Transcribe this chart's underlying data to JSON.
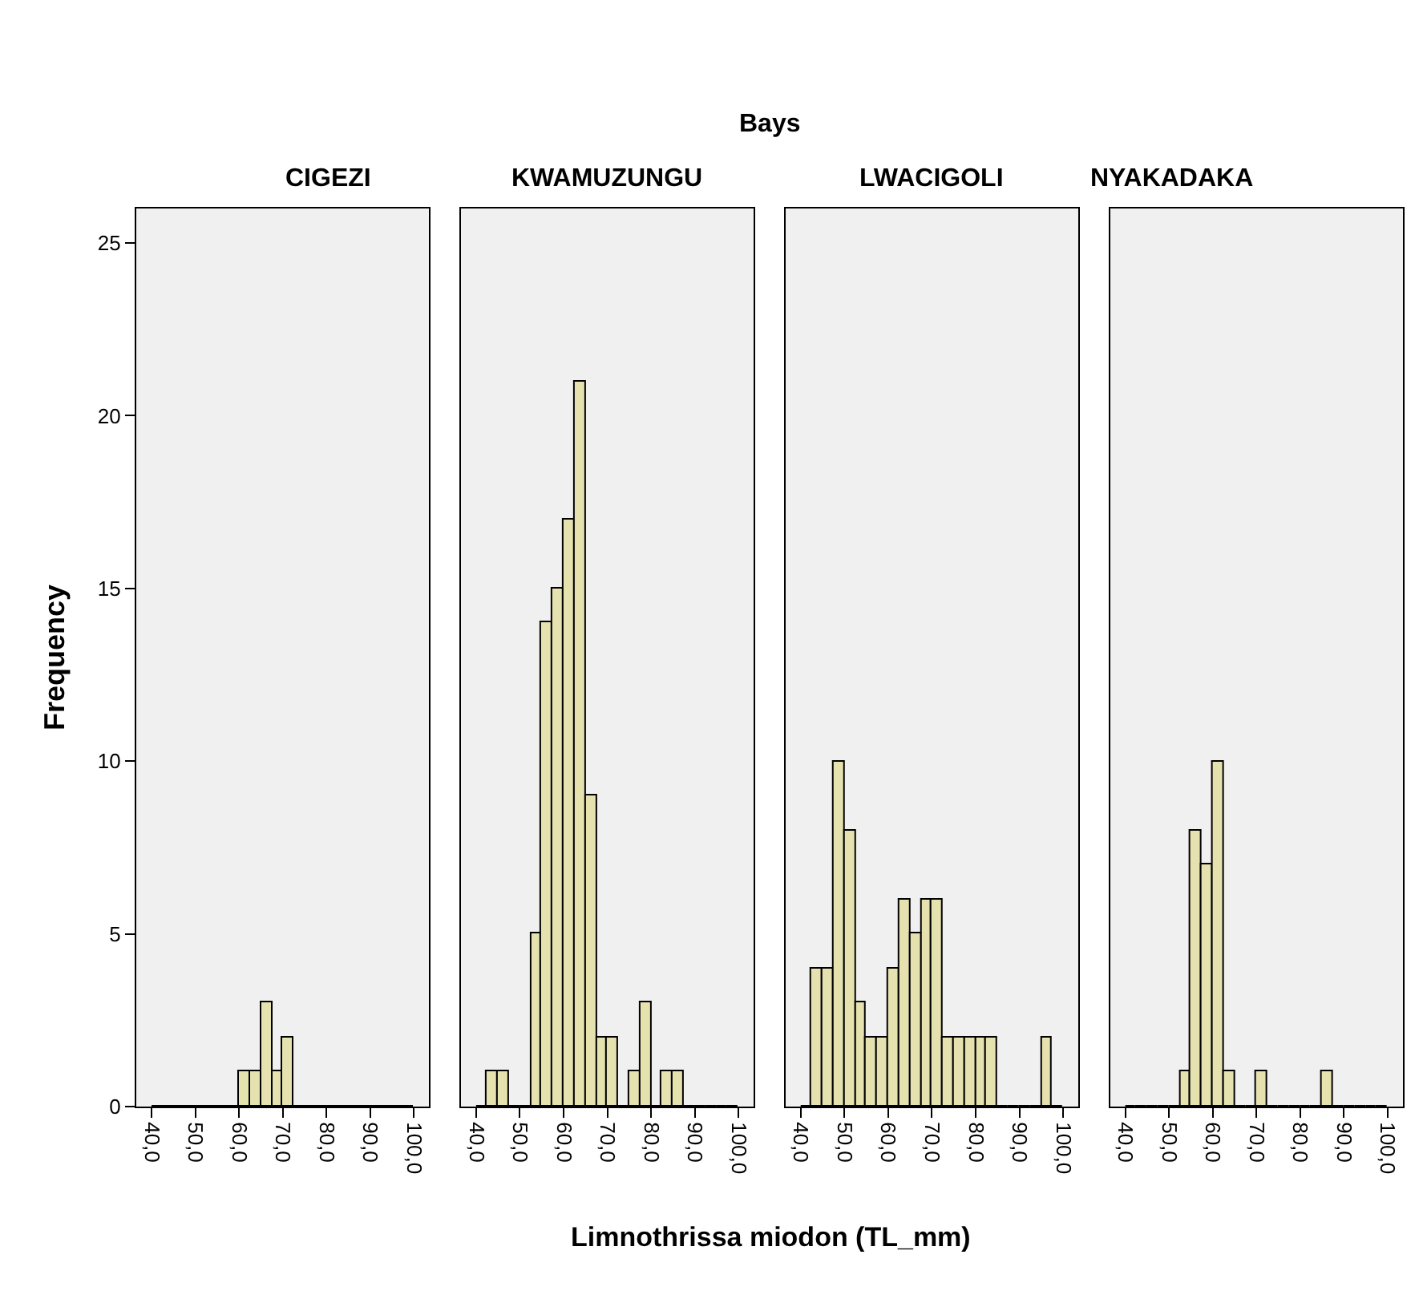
{
  "chart_data": [
    {
      "type": "histogram",
      "title": "CIGEZI",
      "annotations": [
        "Bays"
      ],
      "xlabel": "Limnothrissa miodon (TL_mm)",
      "ylabel": "Frequency",
      "color": "#e6e2b0",
      "bins": [
        40,
        42.5,
        45,
        47.5,
        50,
        52.5,
        55,
        57.5,
        60,
        62.5,
        65,
        67.5,
        70,
        72.5,
        75,
        77.5,
        80,
        82.5,
        85,
        87.5,
        90,
        92.5,
        95,
        97.5,
        100
      ],
      "values": [
        0,
        0,
        0,
        0,
        0,
        0,
        0,
        0,
        1,
        1,
        3,
        1,
        2,
        0,
        0,
        0,
        0,
        0,
        0,
        0,
        0,
        0,
        0,
        0
      ],
      "xlim": [
        36.5,
        103.5
      ],
      "xticks": [
        {
          "value": 40,
          "label": "40,0"
        },
        {
          "value": 50,
          "label": "50,0"
        },
        {
          "value": 60,
          "label": "60,0"
        },
        {
          "value": 70,
          "label": "70,0"
        },
        {
          "value": 80,
          "label": "80,0"
        },
        {
          "value": 90,
          "label": "90,0"
        },
        {
          "value": 100,
          "label": "100,0"
        }
      ],
      "ylim": [
        0,
        26
      ],
      "yticks": [
        0,
        5,
        10,
        15,
        20,
        25
      ],
      "grid": false
    },
    {
      "type": "histogram",
      "title": "KWAMUZUNGU",
      "color": "#e6e2b0",
      "bins": [
        40,
        42.5,
        45,
        47.5,
        50,
        52.5,
        55,
        57.5,
        60,
        62.5,
        65,
        67.5,
        70,
        72.5,
        75,
        77.5,
        80,
        82.5,
        85,
        87.5,
        90,
        92.5,
        95,
        97.5,
        100
      ],
      "values": [
        0,
        1,
        1,
        0,
        0,
        5,
        14,
        15,
        17,
        21,
        9,
        2,
        2,
        0,
        1,
        3,
        0,
        1,
        1,
        0,
        0,
        0,
        0,
        0
      ],
      "xlim": [
        36.5,
        103.5
      ],
      "xticks": [
        {
          "value": 40,
          "label": "40,0"
        },
        {
          "value": 50,
          "label": "50,0"
        },
        {
          "value": 60,
          "label": "60,0"
        },
        {
          "value": 70,
          "label": "70,0"
        },
        {
          "value": 80,
          "label": "80,0"
        },
        {
          "value": 90,
          "label": "90,0"
        },
        {
          "value": 100,
          "label": "100,0"
        }
      ],
      "ylim": [
        0,
        26
      ],
      "tick_labels": "x",
      "grid": false
    },
    {
      "type": "histogram",
      "title": "LWACIGOLI",
      "color": "#e6e2b0",
      "bins": [
        40,
        42.5,
        45,
        47.5,
        50,
        52.5,
        55,
        57.5,
        60,
        62.5,
        65,
        67.5,
        70,
        72.5,
        75,
        77.5,
        80,
        82.5,
        85,
        87.5,
        90,
        92.5,
        95,
        97.5,
        100
      ],
      "values": [
        0,
        4,
        4,
        10,
        8,
        3,
        2,
        2,
        4,
        6,
        5,
        6,
        6,
        2,
        2,
        2,
        2,
        2,
        0,
        0,
        0,
        0,
        2,
        0
      ],
      "xlim": [
        36.5,
        103.5
      ],
      "xticks": [
        {
          "value": 40,
          "label": "40,0"
        },
        {
          "value": 50,
          "label": "50,0"
        },
        {
          "value": 60,
          "label": "60,0"
        },
        {
          "value": 70,
          "label": "70,0"
        },
        {
          "value": 80,
          "label": "80,0"
        },
        {
          "value": 90,
          "label": "90,0"
        },
        {
          "value": 100,
          "label": "100,0"
        }
      ],
      "ylim": [
        0,
        26
      ],
      "tick_labels": "x",
      "grid": false
    },
    {
      "type": "histogram",
      "title": "NYAKADAKA",
      "color": "#e6e2b0",
      "bins": [
        40,
        42.5,
        45,
        47.5,
        50,
        52.5,
        55,
        57.5,
        60,
        62.5,
        65,
        67.5,
        70,
        72.5,
        75,
        77.5,
        80,
        82.5,
        85,
        87.5,
        90,
        92.5,
        95,
        97.5,
        100
      ],
      "values": [
        0,
        0,
        0,
        0,
        0,
        1,
        8,
        7,
        10,
        1,
        0,
        0,
        1,
        0,
        0,
        0,
        0,
        0,
        1,
        0,
        0,
        0,
        0,
        0
      ],
      "xlim": [
        36.5,
        103.5
      ],
      "xticks": [
        {
          "value": 40,
          "label": "40,0"
        },
        {
          "value": 50,
          "label": "50,0"
        },
        {
          "value": 60,
          "label": "60,0"
        },
        {
          "value": 70,
          "label": "70,0"
        },
        {
          "value": 80,
          "label": "80,0"
        },
        {
          "value": 90,
          "label": "90,0"
        },
        {
          "value": 100,
          "label": "100,0"
        }
      ],
      "ylim": [
        0,
        26
      ],
      "tick_labels": "x",
      "grid": false
    }
  ]
}
